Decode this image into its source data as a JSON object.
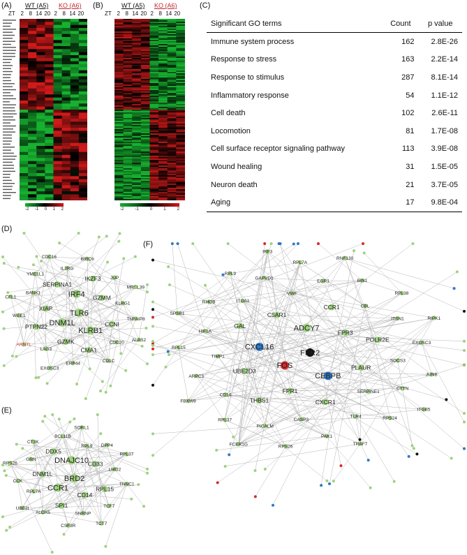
{
  "panels": {
    "a": "(A)",
    "b": "(B)",
    "c": "(C)",
    "d": "(D)",
    "e": "(E)",
    "f": "(F)"
  },
  "heatmap_a": {
    "wt": "WT (A5)",
    "ko": "KO (A6)",
    "zt": "ZT",
    "times": [
      "2",
      "8",
      "14",
      "20",
      "2",
      "8",
      "14",
      "20"
    ],
    "scale_ticks": [
      "-2",
      "-1",
      "0",
      "1",
      "2"
    ],
    "colors": {
      "low": "#17b030",
      "mid": "#000000",
      "high": "#d01a1a"
    }
  },
  "heatmap_b": {
    "wt": "WT (A5)",
    "ko": "KO (A6)",
    "zt": "ZT",
    "times": [
      "2",
      "8",
      "14",
      "20",
      "2",
      "8",
      "14",
      "20"
    ],
    "scale_ticks": [
      "-2",
      "-1",
      "0",
      "1",
      "2"
    ]
  },
  "go_table": {
    "headers": [
      "Significant GO terms",
      "Count",
      "p value"
    ],
    "rows": [
      {
        "term": "Immune system process",
        "count": "162",
        "p": "2.8E-26"
      },
      {
        "term": "Response to stress",
        "count": "163",
        "p": "2.2E-14"
      },
      {
        "term": "Response to stimulus",
        "count": "287",
        "p": "8.1E-14"
      },
      {
        "term": "Inflammatory response",
        "count": "54",
        "p": "1.1E-12"
      },
      {
        "term": "Cell death",
        "count": "102",
        "p": "2.6E-11"
      },
      {
        "term": "Locomotion",
        "count": "81",
        "p": "1.7E-08"
      },
      {
        "term": "Cell surface receptor signaling pathway",
        "count": "113",
        "p": "3.9E-08"
      },
      {
        "term": "Wound healing",
        "count": "31",
        "p": "1.5E-05"
      },
      {
        "term": "Neuron death",
        "count": "21",
        "p": "3.7E-05"
      },
      {
        "term": "Aging",
        "count": "17",
        "p": "9.8E-04"
      }
    ]
  },
  "network_d": {
    "labels": [
      "TLR6",
      "DNM1L",
      "IRF4",
      "KLRB1",
      "XIAP",
      "GZMM",
      "GZMK",
      "SERPINA1",
      "CCNI",
      "PTPN22",
      "IKZF3",
      "CMA1",
      "BANK1",
      "KLRG1",
      "LAG3",
      "IL2RG",
      "CDC20",
      "WEE1",
      "JUP",
      "ERP44",
      "YME1L1",
      "TNFAIP8",
      "ARNTL",
      "BIRC6",
      "CD1C",
      "CFL1",
      "MRPL39",
      "EXOSC3",
      "CDC16",
      "ALAS2"
    ],
    "highlight": "ARNTL"
  },
  "network_e": {
    "labels": [
      "BRD2",
      "CCR1",
      "DNAJC10",
      "CD14",
      "DNM1L",
      "CD33",
      "SPI1",
      "DDX5",
      "RPL15",
      "RPL7A",
      "RPL9",
      "SNRNP",
      "GRN",
      "LMO2",
      "ALOX5",
      "BCL11B",
      "TCF7",
      "CCK",
      "DPP4",
      "CSF3R",
      "CT3K",
      "TNNC1",
      "UBE2I",
      "SORL1",
      "TCT7",
      "RPS26",
      "RPL37"
    ]
  },
  "network_f": {
    "labels": [
      "FPR2",
      "FOS",
      "ADCY7",
      "CEBPB",
      "CXCL16",
      "FPR3",
      "FPR1",
      "C5AR1",
      "PLAUR",
      "UBE2D3",
      "CCR1",
      "CXCR1",
      "GAL",
      "POLR2E",
      "THBS1",
      "VWF",
      "SERPINE1",
      "TIMP1",
      "CBL",
      "CASP3",
      "ITGA1",
      "SOCS3",
      "CD14",
      "EGR1",
      "TLR4",
      "HIF1A",
      "ITSN1",
      "PICALM",
      "GAPVD1",
      "CTTN",
      "ARPC3",
      "BIN1",
      "PAK1",
      "RHOB",
      "EXOSC3",
      "RPL37",
      "RPL7A",
      "RPS24",
      "RPL15",
      "RPL38",
      "RPS26",
      "RPL9",
      "JUNB",
      "FBXW8",
      "RNF130",
      "TRAF7",
      "SPSB1",
      "RIPK1",
      "FCER1G",
      "IRF3",
      "ITGB5"
    ]
  }
}
